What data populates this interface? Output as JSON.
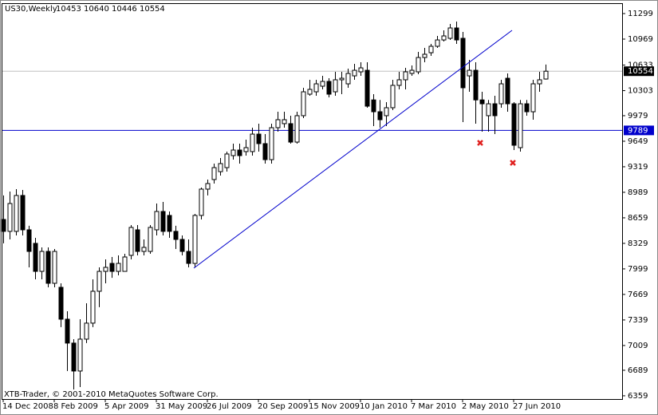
{
  "chart_data": {
    "type": "candlestick",
    "title": "US30,Weekly",
    "ohlc_text": "10453 10640 10446 10554",
    "footer": "XTB-Trader, © 2001-2010 MetaQuotes Software Corp.",
    "categories": [
      "14 Dec 2008",
      null,
      null,
      null,
      null,
      null,
      null,
      null,
      "8 Feb 2009",
      null,
      null,
      null,
      null,
      null,
      null,
      null,
      "5 Apr 2009",
      null,
      null,
      null,
      null,
      null,
      null,
      null,
      "31 May 2009",
      null,
      null,
      null,
      null,
      null,
      null,
      null,
      "26 Jul 2009",
      null,
      null,
      null,
      null,
      null,
      null,
      null,
      "20 Sep 2009",
      null,
      null,
      null,
      null,
      null,
      null,
      null,
      "15 Nov 2009",
      null,
      null,
      null,
      null,
      null,
      null,
      null,
      "10 Jan 2010",
      null,
      null,
      null,
      null,
      null,
      null,
      null,
      "7 Mar 2010",
      null,
      null,
      null,
      null,
      null,
      null,
      null,
      "2 May 2010",
      null,
      null,
      null,
      null,
      null,
      null,
      null,
      "27 Jun 2010",
      null,
      null,
      null,
      null,
      null
    ],
    "open": [
      8638,
      8484,
      8484,
      8948,
      8504,
      8329,
      7967,
      8225,
      7813,
      7761,
      7349,
      7040,
      6679,
      7091,
      7298,
      7710,
      7967,
      8070,
      7967,
      7967,
      8174,
      8504,
      8225,
      8225,
      8504,
      8741,
      8690,
      8484,
      8380,
      8225,
      8070,
      8690,
      9030,
      9154,
      9256,
      9308,
      9463,
      9535,
      9515,
      9515,
      9741,
      9618,
      9411,
      9824,
      9876,
      9876,
      9638,
      9979,
      10257,
      10288,
      10360,
      10422,
      10288,
      10443,
      10391,
      10494,
      10546,
      10566,
      10183,
      10030,
      9979,
      10082,
      10371,
      10443,
      10525,
      10546,
      10731,
      10793,
      10876,
      10958,
      10979,
      11113,
      10979,
      10494,
      10566,
      10183,
      9979,
      10133,
      10133,
      10463,
      10133,
      9566,
      10133,
      10030,
      10391,
      10453
    ],
    "high": [
      8948,
      8999,
      9030,
      9020,
      8556,
      8401,
      8277,
      8277,
      8256,
      7813,
      7452,
      7091,
      7349,
      7555,
      7864,
      8019,
      8122,
      8153,
      8174,
      8194,
      8566,
      8566,
      8380,
      8566,
      8844,
      8865,
      8741,
      8556,
      8432,
      8380,
      8710,
      9050,
      9154,
      9360,
      9432,
      9515,
      9618,
      9618,
      9669,
      9824,
      9876,
      9741,
      9876,
      10030,
      10030,
      9979,
      10030,
      10340,
      10443,
      10443,
      10494,
      10463,
      10546,
      10546,
      10587,
      10649,
      10670,
      10670,
      10257,
      10183,
      10154,
      10443,
      10546,
      10597,
      10628,
      10804,
      10855,
      10907,
      11010,
      11082,
      11165,
      11196,
      11062,
      10701,
      10670,
      10288,
      10183,
      10236,
      10443,
      10525,
      10154,
      10183,
      10183,
      10443,
      10546,
      10640
    ],
    "low": [
      8329,
      8380,
      8432,
      8432,
      8019,
      7864,
      7864,
      7761,
      7761,
      7246,
      6679,
      6441,
      6472,
      7040,
      7246,
      7504,
      7813,
      7884,
      7916,
      7967,
      8122,
      8174,
      8174,
      8194,
      8432,
      8432,
      8401,
      8256,
      8174,
      8019,
      8019,
      8638,
      8948,
      9102,
      9205,
      9256,
      9411,
      9360,
      9463,
      9463,
      9515,
      9360,
      9360,
      9772,
      9824,
      9618,
      9618,
      9948,
      10236,
      10236,
      10319,
      10216,
      10236,
      10257,
      10340,
      10443,
      10494,
      10082,
      9845,
      9824,
      9845,
      10051,
      10319,
      10319,
      10494,
      10515,
      10670,
      10752,
      10855,
      10938,
      10958,
      10907,
      9896,
      10288,
      9876,
      9772,
      9772,
      9741,
      10082,
      10030,
      9535,
      9515,
      9979,
      9927,
      10288,
      10446
    ],
    "close": [
      8484,
      8844,
      8948,
      8504,
      8225,
      7967,
      8225,
      7813,
      8225,
      7349,
      7040,
      6679,
      7091,
      7298,
      7710,
      7967,
      8019,
      7967,
      8070,
      8153,
      8535,
      8225,
      8277,
      8535,
      8741,
      8484,
      8484,
      8380,
      8225,
      8070,
      8690,
      9030,
      9102,
      9308,
      9360,
      9484,
      9535,
      9463,
      9566,
      9741,
      9618,
      9411,
      9824,
      9927,
      9927,
      9638,
      9979,
      10288,
      10319,
      10391,
      10422,
      10257,
      10443,
      10463,
      10525,
      10566,
      10597,
      10102,
      10030,
      9927,
      10082,
      10371,
      10443,
      10546,
      10566,
      10731,
      10773,
      10876,
      10958,
      11010,
      11113,
      10958,
      10340,
      10566,
      10183,
      10133,
      10133,
      9979,
      10391,
      10133,
      9597,
      10133,
      10030,
      10391,
      10443,
      10554
    ],
    "up_color": "#ffffff",
    "down_color": "#000000",
    "ylim": [
      6317,
      11433
    ],
    "yticks": [
      11299,
      10969,
      10633,
      10303,
      9979,
      9649,
      9319,
      8989,
      8659,
      8329,
      7999,
      7669,
      7339,
      7009,
      6689,
      6359
    ],
    "current_price": 10554,
    "hline": 9789,
    "hline_color": "#0000cc",
    "grid": false
  }
}
